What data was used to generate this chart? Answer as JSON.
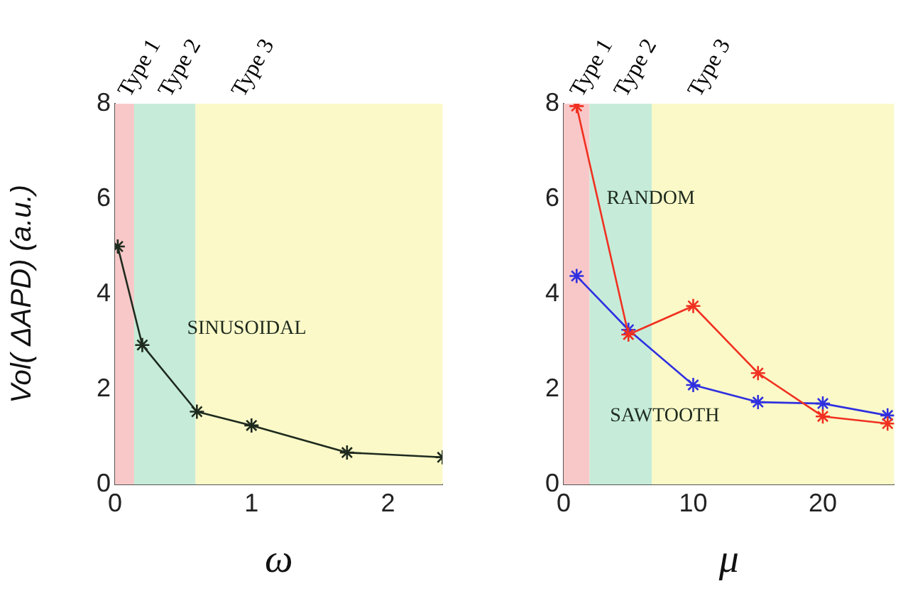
{
  "chart_data": [
    {
      "type": "line",
      "xlabel": "ω",
      "ylabel": "Vol( ΔAPD) (a.u.)",
      "xlim": [
        0,
        2.4
      ],
      "xticks": [
        0,
        1,
        2
      ],
      "ylim": [
        0,
        8
      ],
      "yticks": [
        0,
        2,
        4,
        6,
        8
      ],
      "grid": false,
      "legend": false,
      "marker": "cross",
      "x": [
        0.02,
        0.2,
        0.6,
        1.0,
        1.7,
        2.4
      ],
      "series": [
        {
          "name": "SINUSOIDAL",
          "color": "#1e2a1e",
          "values": [
            5.0,
            2.93,
            1.53,
            1.24,
            0.67,
            0.57
          ]
        }
      ],
      "bands": [
        {
          "axis": "x",
          "from": 0,
          "to": 0.14,
          "label": "Type 1",
          "color": "#f8c8c8"
        },
        {
          "axis": "x",
          "from": 0.14,
          "to": 0.59,
          "label": "Type 2",
          "color": "#c6ecd9"
        },
        {
          "axis": "x",
          "from": 0.59,
          "to": 2.4,
          "label": "Type 3",
          "color": "#fbf9c8"
        }
      ]
    },
    {
      "type": "line",
      "xlabel": "μ",
      "xlim": [
        0,
        25.5
      ],
      "xticks": [
        0,
        10,
        20
      ],
      "ylim": [
        0,
        8
      ],
      "yticks": [
        0,
        2,
        4,
        6,
        8
      ],
      "grid": false,
      "legend": false,
      "marker": "cross",
      "x": [
        1,
        5,
        10,
        15,
        20,
        25
      ],
      "series": [
        {
          "name": "RANDOM",
          "color": "#f03020",
          "values": [
            7.95,
            3.15,
            3.75,
            2.34,
            1.43,
            1.28
          ]
        },
        {
          "name": "SAWTOOTH",
          "color": "#3030e0",
          "values": [
            4.38,
            3.25,
            2.09,
            1.73,
            1.7,
            1.45
          ]
        }
      ],
      "bands": [
        {
          "axis": "x",
          "from": 0,
          "to": 2.0,
          "label": "Type 1",
          "color": "#f8c8c8"
        },
        {
          "axis": "x",
          "from": 2.0,
          "to": 6.8,
          "label": "Type 2",
          "color": "#c6ecd9"
        },
        {
          "axis": "x",
          "from": 6.8,
          "to": 25.5,
          "label": "Type 3",
          "color": "#fbf9c8"
        }
      ]
    }
  ]
}
